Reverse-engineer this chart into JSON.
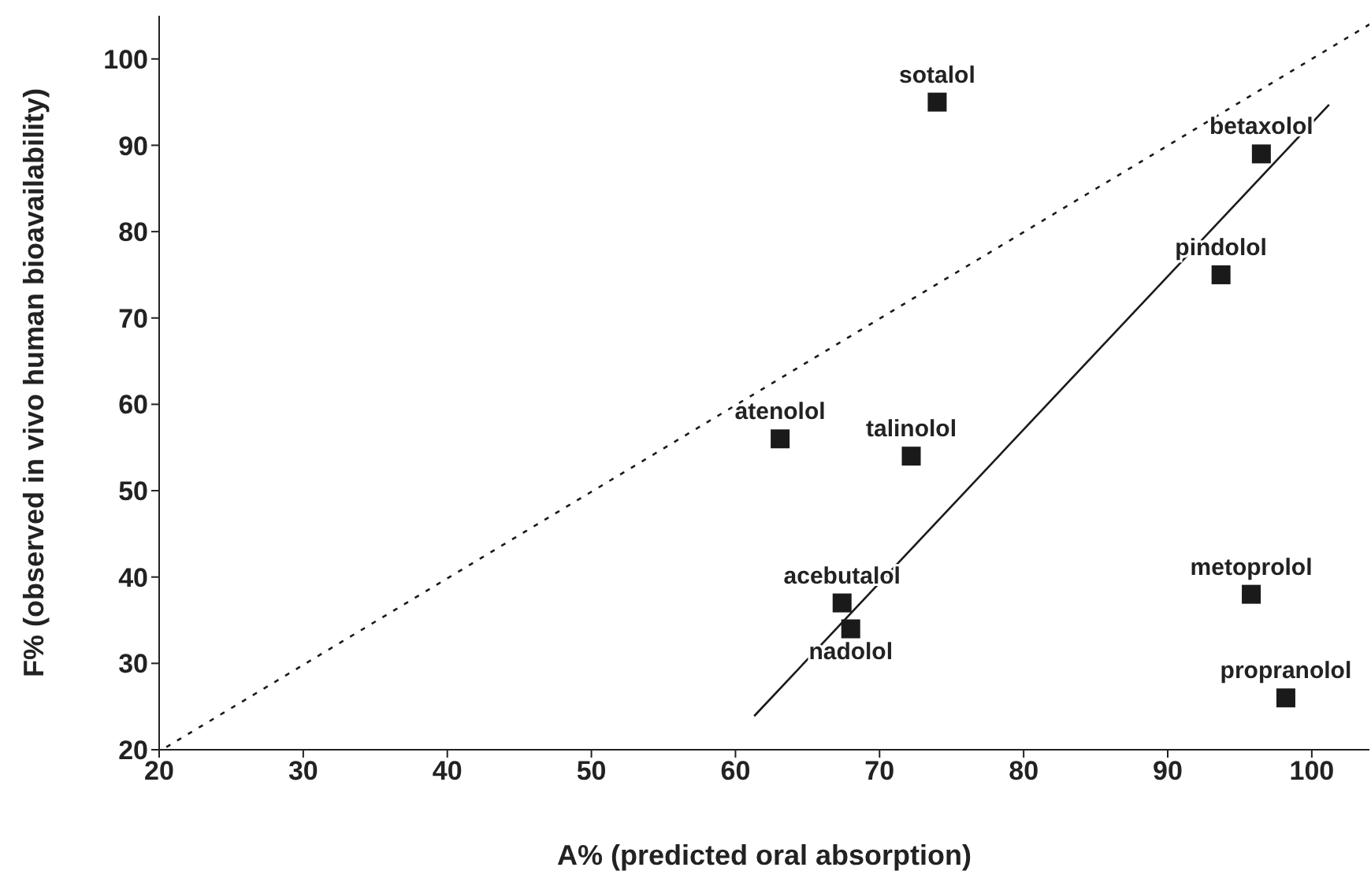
{
  "chart_data": {
    "type": "scatter",
    "xlabel": "A% (predicted oral absorption)",
    "ylabel": "F% (observed in vivo human bioavailability)",
    "xlim": [
      20,
      104
    ],
    "ylim": [
      20,
      105
    ],
    "xticks": [
      20,
      30,
      40,
      50,
      60,
      70,
      80,
      90,
      100
    ],
    "yticks": [
      20,
      30,
      40,
      50,
      60,
      70,
      80,
      90,
      100
    ],
    "grid": false,
    "legend": false,
    "marker": "square",
    "series": [
      {
        "name": "sotalol",
        "color": "#1a1a1a",
        "x": [
          74
        ],
        "values": [
          95
        ]
      },
      {
        "name": "betaxolol",
        "color": "#1a1a1a",
        "x": [
          96.5
        ],
        "values": [
          89
        ]
      },
      {
        "name": "pindolol",
        "color": "#1a1a1a",
        "x": [
          93.7
        ],
        "values": [
          75
        ]
      },
      {
        "name": "atenolol",
        "color": "#1a1a1a",
        "x": [
          63.1
        ],
        "values": [
          56
        ]
      },
      {
        "name": "talinolol",
        "color": "#1a1a1a",
        "x": [
          72.2
        ],
        "values": [
          54
        ]
      },
      {
        "name": "acebutalol",
        "color": "#1a1a1a",
        "x": [
          67.4
        ],
        "values": [
          37
        ]
      },
      {
        "name": "nadolol",
        "color": "#1a1a1a",
        "x": [
          68
        ],
        "values": [
          34
        ]
      },
      {
        "name": "metoprolol",
        "color": "#1a1a1a",
        "x": [
          95.8
        ],
        "values": [
          38
        ]
      },
      {
        "name": "propranolol",
        "color": "#1a1a1a",
        "x": [
          98.2
        ],
        "values": [
          26
        ]
      },
      {
        "type": "line",
        "color": "#1a1a1a",
        "line_style": "dotted",
        "marker": "none",
        "x": [
          20.5,
          104
        ],
        "values": [
          20.3,
          104
        ]
      },
      {
        "type": "line",
        "color": "#1a1a1a",
        "line_style": "solid",
        "marker": "none",
        "x": [
          61.3,
          101.2
        ],
        "values": [
          23.9,
          94.7
        ]
      }
    ]
  }
}
